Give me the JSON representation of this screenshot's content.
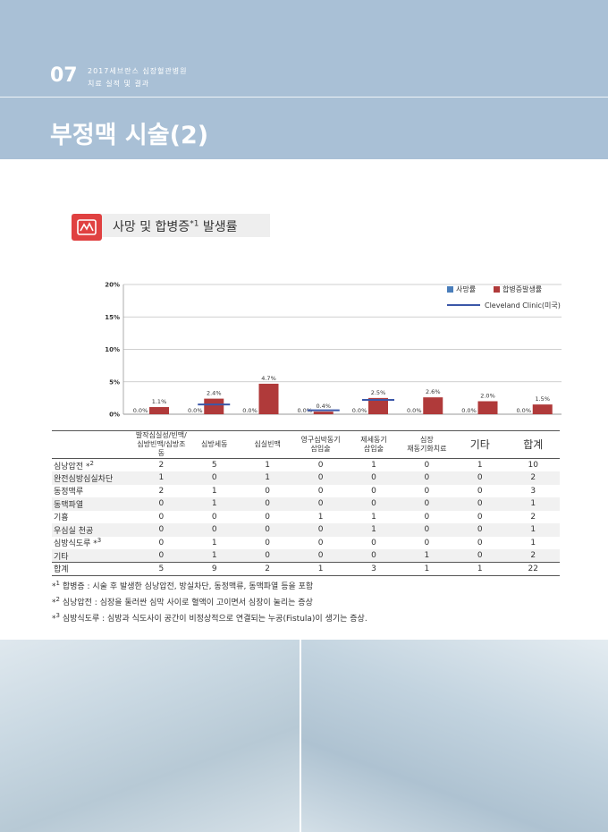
{
  "header": {
    "chapter_number": "07",
    "line1": "2017세브란스 심장혈관병원",
    "line2": "치료 실적 및 결과",
    "title": "부정맥 시술(2)"
  },
  "section": {
    "label": "사망 및 합병증",
    "sup": "*1",
    "suffix": " 발생률"
  },
  "chart_data": {
    "type": "bar",
    "categories": [
      "발작심실성/빈맥/심방빈맥/심방조동",
      "심방세동",
      "심실빈맥",
      "영구심박동기 삽입술",
      "제세동기 삽입술",
      "심장 재동기화치료",
      "기타",
      "합계"
    ],
    "series": [
      {
        "name": "사망률",
        "values": [
          0.0,
          0.0,
          0.0,
          0.0,
          0.0,
          0.0,
          0.0,
          0.0
        ],
        "labels": [
          "0.0%",
          "0.0%",
          "0.0%",
          "0.0%",
          "0.0%",
          "0.0%",
          "0.0%",
          "0.0%"
        ],
        "color": "#4a7ebb"
      },
      {
        "name": "합병증발생률",
        "values": [
          1.1,
          2.4,
          4.7,
          0.4,
          2.5,
          2.6,
          2.0,
          1.5
        ],
        "labels": [
          "1.1%",
          "2.4%",
          "4.7%",
          "0.4%",
          "2.5%",
          "2.6%",
          "2.0%",
          "1.5%"
        ],
        "color": "#b03a3a"
      },
      {
        "name": "Cleveland Clinic(미국)",
        "values": [
          null,
          1.5,
          null,
          0.6,
          2.2,
          null,
          null,
          null
        ],
        "color": "#3b57a8"
      }
    ],
    "yticks": [
      "0%",
      "5%",
      "10%",
      "15%",
      "20%"
    ],
    "ylim": [
      0,
      20
    ],
    "grid": true,
    "legend_position": "top-right"
  },
  "table": {
    "headers": [
      "발작심실성/빈맥/\n심방빈맥/심방조동",
      "심방세동",
      "심실빈맥",
      "영구심박동기\n삽입술",
      "제세동기\n삽입술",
      "심장\n재동기화치료",
      "기타",
      "합계"
    ],
    "rows": [
      {
        "label": "심낭압전 *",
        "sup": "2",
        "values": [
          "2",
          "5",
          "1",
          "0",
          "1",
          "0",
          "1",
          "10"
        ]
      },
      {
        "label": "완전심방심실차단",
        "sup": "",
        "values": [
          "1",
          "0",
          "1",
          "0",
          "0",
          "0",
          "0",
          "2"
        ]
      },
      {
        "label": "동정맥루",
        "sup": "",
        "values": [
          "2",
          "1",
          "0",
          "0",
          "0",
          "0",
          "0",
          "3"
        ]
      },
      {
        "label": "동맥파열",
        "sup": "",
        "values": [
          "0",
          "1",
          "0",
          "0",
          "0",
          "0",
          "0",
          "1"
        ]
      },
      {
        "label": "기흉",
        "sup": "",
        "values": [
          "0",
          "0",
          "0",
          "1",
          "1",
          "0",
          "0",
          "2"
        ]
      },
      {
        "label": "우심실 천공",
        "sup": "",
        "values": [
          "0",
          "0",
          "0",
          "0",
          "1",
          "0",
          "0",
          "1"
        ]
      },
      {
        "label": "심방식도루 *",
        "sup": "3",
        "values": [
          "0",
          "1",
          "0",
          "0",
          "0",
          "0",
          "0",
          "1"
        ]
      },
      {
        "label": "기타",
        "sup": "",
        "values": [
          "0",
          "1",
          "0",
          "0",
          "0",
          "1",
          "0",
          "2"
        ]
      }
    ],
    "total": {
      "label": "합계",
      "values": [
        "5",
        "9",
        "2",
        "1",
        "3",
        "1",
        "1",
        "22"
      ]
    }
  },
  "notes": [
    {
      "mark": "*1",
      "text": " 합병증 : 시술 후 발생한 심낭압전, 방실차단, 동정맥류, 동맥파열 등을 포함"
    },
    {
      "mark": "*2",
      "text": " 심낭압전 : 심장을 둘러싼 심막 사이로 혈액이 고이면서 심장이 눌리는 증상"
    },
    {
      "mark": "*3",
      "text": " 심방식도루 : 심방과 식도사이 공간이 비정상적으로 연결되는 누공(Fistula)이 생기는 증상."
    }
  ],
  "colors": {
    "header_bg": "#a9c0d6",
    "accent": "#e04141",
    "bar": "#b03a3a",
    "line": "#3b57a8"
  },
  "icons": {
    "section_icon": "chart-icon"
  }
}
